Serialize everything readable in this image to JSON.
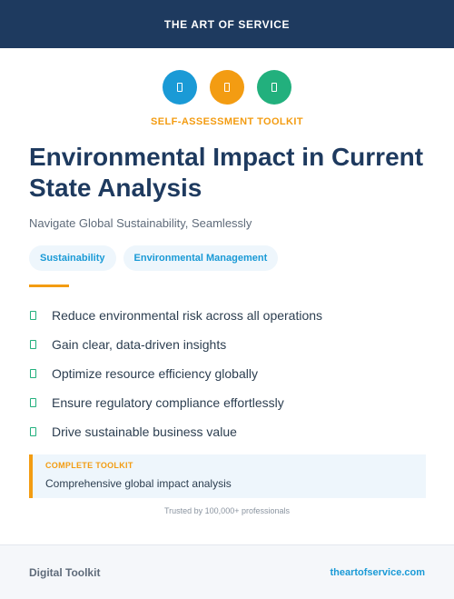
{
  "header": {
    "brand": "THE ART OF SERVICE"
  },
  "icons": [
    {
      "name": "document-icon",
      "color": "#1a9ad6"
    },
    {
      "name": "document-icon",
      "color": "#f39c12"
    },
    {
      "name": "document-icon",
      "color": "#22b07d"
    }
  ],
  "kicker": "SELF-ASSESSMENT TOOLKIT",
  "title": "Environmental Impact in Current State Analysis",
  "subtitle": "Navigate Global Sustainability, Seamlessly",
  "tags": [
    "Sustainability",
    "Environmental Management"
  ],
  "benefits": [
    "Reduce environmental risk across all operations",
    "Gain clear, data-driven insights",
    "Optimize resource efficiency globally",
    "Ensure regulatory compliance effortlessly",
    "Drive sustainable business value"
  ],
  "callout": {
    "label": "COMPLETE TOOLKIT",
    "text": "Comprehensive global impact analysis"
  },
  "trusted": "Trusted by 100,000+ professionals",
  "footer": {
    "left": "Digital Toolkit",
    "right": "theartofservice.com"
  },
  "colors": {
    "navy": "#1e3a5f",
    "orange": "#f39c12",
    "blue": "#1a9ad6",
    "green": "#22b07d"
  }
}
